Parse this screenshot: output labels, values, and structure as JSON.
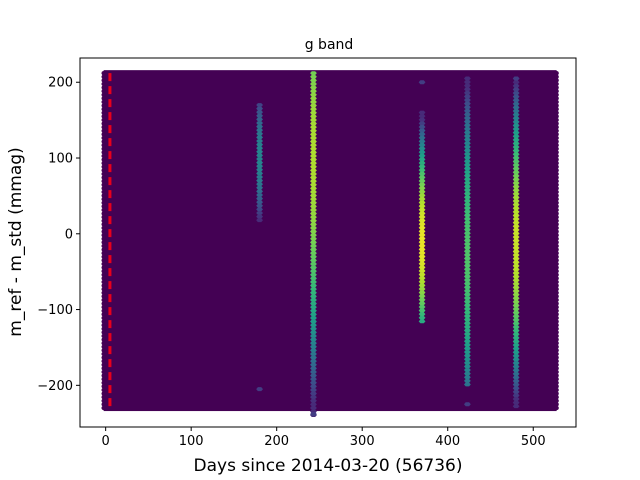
{
  "chart_data": {
    "type": "heatmap",
    "title": "g band",
    "xlabel": "Days since 2014-03-20 (56736)",
    "ylabel": "m_ref - m_std (mmag)",
    "xlim": [
      -30,
      550
    ],
    "ylim": [
      -255,
      232
    ],
    "xticks": [
      0,
      100,
      200,
      300,
      400,
      500
    ],
    "yticks": [
      -200,
      -100,
      0,
      100,
      200
    ],
    "grid": false,
    "colormap": "viridis",
    "background_color": "#440154",
    "hexbin_extent": {
      "x": [
        0,
        525
      ],
      "y": [
        -230,
        212
      ]
    },
    "stripes": [
      {
        "x": 180,
        "ymin": 15,
        "ymax": 170,
        "center": 100,
        "peak": 0.45
      },
      {
        "x": 243,
        "ymin": -240,
        "ymax": 212,
        "center": 100,
        "peak": 0.88
      },
      {
        "x": 370,
        "ymin": -120,
        "ymax": 160,
        "center": -10,
        "peak": 0.97
      },
      {
        "x": 423,
        "ymin": -200,
        "ymax": 205,
        "center": -30,
        "peak": 0.72
      },
      {
        "x": 480,
        "ymin": -230,
        "ymax": 200,
        "center": -10,
        "peak": 0.92
      }
    ],
    "faint_spots": [
      {
        "x": 180,
        "y": -205
      },
      {
        "x": 243,
        "y": -238
      },
      {
        "x": 370,
        "y": 200
      },
      {
        "x": 423,
        "y": -225
      },
      {
        "x": 480,
        "y": 205
      }
    ],
    "reference_line": {
      "x": 5,
      "color": "#e8001c",
      "style": "dashed"
    }
  }
}
